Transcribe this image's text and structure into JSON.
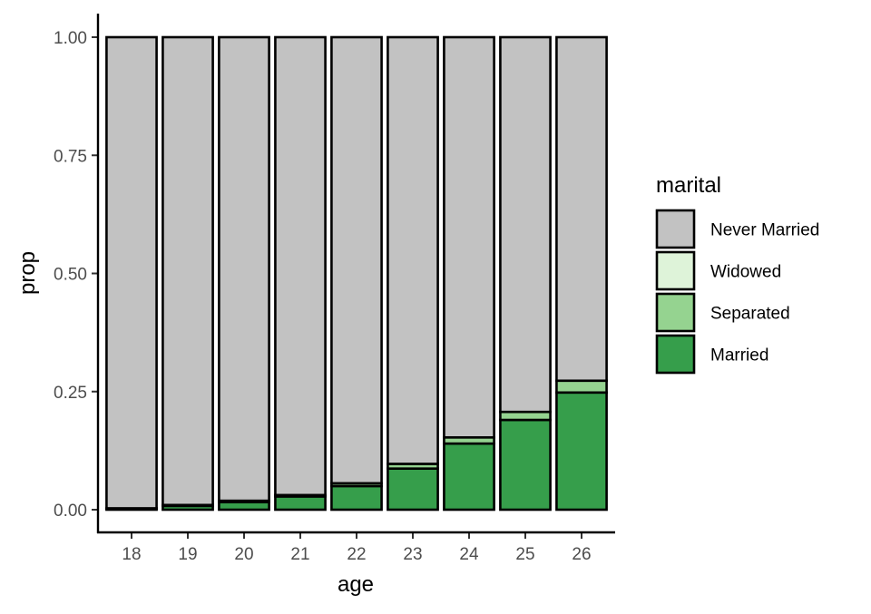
{
  "chart_data": {
    "type": "bar",
    "stacked": true,
    "xlabel": "age",
    "ylabel": "prop",
    "ylim": [
      0,
      1
    ],
    "yticks": [
      "0.00",
      "0.25",
      "0.50",
      "0.75",
      "1.00"
    ],
    "categories": [
      "18",
      "19",
      "20",
      "21",
      "22",
      "23",
      "24",
      "25",
      "26"
    ],
    "legend_title": "marital",
    "legend_position": "right",
    "grid": false,
    "series": [
      {
        "name": "Married",
        "color": "#369e4b",
        "values": [
          0.002,
          0.008,
          0.016,
          0.028,
          0.05,
          0.087,
          0.14,
          0.19,
          0.248
        ]
      },
      {
        "name": "Separated",
        "color": "#95d390",
        "values": [
          0.001,
          0.002,
          0.003,
          0.003,
          0.006,
          0.01,
          0.013,
          0.017,
          0.025
        ]
      },
      {
        "name": "Widowed",
        "color": "#def3d9",
        "values": [
          0.0,
          0.0,
          0.0,
          0.0,
          0.0,
          0.0,
          0.0,
          0.0,
          0.0
        ]
      },
      {
        "name": "Never Married",
        "color": "#c2c2c2",
        "values": [
          0.997,
          0.99,
          0.981,
          0.969,
          0.944,
          0.903,
          0.847,
          0.793,
          0.727
        ]
      }
    ],
    "legend_order": [
      "Never Married",
      "Widowed",
      "Separated",
      "Married"
    ]
  }
}
